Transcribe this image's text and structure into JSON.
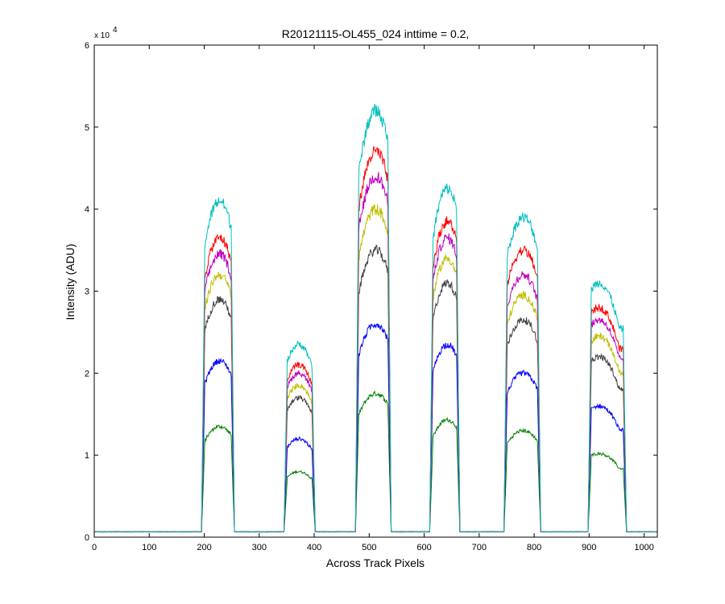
{
  "chart_data": {
    "type": "line",
    "title": "R20121115-OL455_024 inttime = 0.2,",
    "xlabel": "Across Track Pixels",
    "ylabel": "Intensity (ADU)",
    "y_multiplier_base": "x 10",
    "y_multiplier_exp": "4",
    "xlim": [
      0,
      1024
    ],
    "ylim": [
      0,
      60000
    ],
    "xticks": [
      0,
      100,
      200,
      300,
      400,
      500,
      600,
      700,
      800,
      900,
      1000
    ],
    "yticks": [
      0,
      1,
      2,
      3,
      4,
      5,
      6
    ],
    "grid": false,
    "baseline": 650,
    "channels": [
      {
        "x_start": 195,
        "x_end": 255,
        "center": 228
      },
      {
        "x_start": 345,
        "x_end": 402,
        "center": 372
      },
      {
        "x_start": 475,
        "x_end": 540,
        "center": 512
      },
      {
        "x_start": 610,
        "x_end": 665,
        "center": 642
      },
      {
        "x_start": 745,
        "x_end": 812,
        "center": 780
      },
      {
        "x_start": 898,
        "x_end": 968,
        "center": 918
      }
    ],
    "series": [
      {
        "color": "#00bfbf",
        "plateau_peaks": [
          41000,
          23500,
          52000,
          42500,
          39000,
          31000
        ]
      },
      {
        "color": "#ff0000",
        "plateau_peaks": [
          36500,
          21000,
          47000,
          38500,
          35000,
          28000
        ]
      },
      {
        "color": "#bf00bf",
        "plateau_peaks": [
          34500,
          20000,
          44000,
          36500,
          32000,
          26500
        ]
      },
      {
        "color": "#bfbf00",
        "plateau_peaks": [
          32000,
          18500,
          40000,
          34000,
          29500,
          24500
        ]
      },
      {
        "color": "#404040",
        "plateau_peaks": [
          29000,
          17000,
          35000,
          31000,
          26500,
          22000
        ]
      },
      {
        "color": "#0000ff",
        "plateau_peaks": [
          21500,
          12000,
          26000,
          23500,
          20000,
          16000
        ]
      },
      {
        "color": "#008000",
        "plateau_peaks": [
          13500,
          8000,
          17500,
          14300,
          13000,
          10200
        ]
      }
    ]
  }
}
